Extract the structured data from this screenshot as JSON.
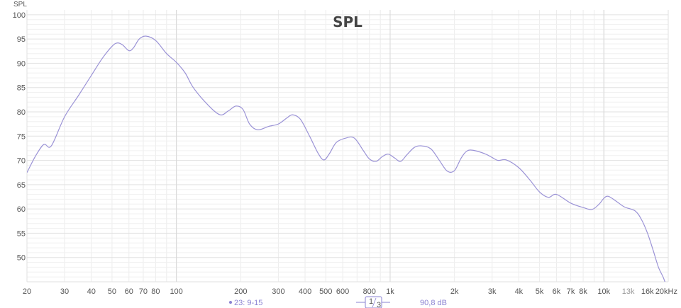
{
  "chart_data": {
    "type": "line",
    "title": "SPL",
    "ylabel": "SPL",
    "xscale": "log",
    "xlim": [
      20,
      20000
    ],
    "ylim": [
      45,
      101
    ],
    "grid": true,
    "ytick_labels": [
      "100",
      "95",
      "90",
      "85",
      "80",
      "75",
      "70",
      "65",
      "60",
      "55",
      "50"
    ],
    "xtick_labels": [
      {
        "x": 20,
        "label": "20"
      },
      {
        "x": 30,
        "label": "30"
      },
      {
        "x": 40,
        "label": "40"
      },
      {
        "x": 50,
        "label": "50"
      },
      {
        "x": 60,
        "label": "60"
      },
      {
        "x": 70,
        "label": "70"
      },
      {
        "x": 80,
        "label": "80"
      },
      {
        "x": 100,
        "label": "100"
      },
      {
        "x": 200,
        "label": "200"
      },
      {
        "x": 300,
        "label": "300"
      },
      {
        "x": 400,
        "label": "400"
      },
      {
        "x": 500,
        "label": "500"
      },
      {
        "x": 600,
        "label": "600"
      },
      {
        "x": 800,
        "label": "800"
      },
      {
        "x": 1000,
        "label": "1k"
      },
      {
        "x": 2000,
        "label": "2k"
      },
      {
        "x": 3000,
        "label": "3k"
      },
      {
        "x": 4000,
        "label": "4k"
      },
      {
        "x": 5000,
        "label": "5k"
      },
      {
        "x": 6000,
        "label": "6k"
      },
      {
        "x": 7000,
        "label": "7k"
      },
      {
        "x": 8000,
        "label": "8k"
      },
      {
        "x": 10000,
        "label": "10k"
      },
      {
        "x": 13000,
        "label": "13k",
        "dim": true
      },
      {
        "x": 16000,
        "label": "16k"
      },
      {
        "x": 20000,
        "label": "20kHz"
      }
    ],
    "series": [
      {
        "color": "#9b93d6",
        "x": [
          20,
          22,
          24,
          26,
          30,
          35,
          40,
          45,
          50,
          53,
          56,
          60,
          63,
          67,
          72,
          80,
          90,
          100,
          110,
          120,
          140,
          160,
          175,
          190,
          205,
          220,
          240,
          270,
          300,
          330,
          350,
          380,
          420,
          460,
          490,
          520,
          560,
          620,
          680,
          750,
          800,
          860,
          920,
          980,
          1050,
          1120,
          1200,
          1300,
          1400,
          1550,
          1700,
          1850,
          2000,
          2150,
          2300,
          2500,
          2800,
          3000,
          3200,
          3500,
          4000,
          4500,
          5000,
          5500,
          6000,
          7000,
          8000,
          8800,
          9500,
          10000,
          10500,
          11500,
          12500,
          14000,
          15000,
          16000,
          17000,
          18000,
          19000,
          20000
        ],
        "y": [
          67.5,
          71.0,
          73.3,
          73.0,
          79.0,
          83.5,
          87.5,
          91.0,
          93.5,
          94.2,
          93.8,
          92.6,
          93.2,
          95.0,
          95.6,
          94.7,
          92.0,
          90.2,
          88.0,
          85.0,
          81.5,
          79.4,
          80.2,
          81.2,
          80.5,
          77.5,
          76.3,
          77.0,
          77.5,
          78.8,
          79.4,
          78.5,
          75.0,
          71.5,
          70.1,
          71.4,
          73.7,
          74.6,
          74.6,
          72.0,
          70.3,
          69.8,
          70.8,
          71.3,
          70.5,
          69.8,
          71.2,
          72.7,
          73.0,
          72.4,
          70.0,
          67.8,
          67.9,
          70.5,
          72.0,
          72.0,
          71.3,
          70.6,
          70.0,
          70.1,
          68.5,
          66.0,
          63.5,
          62.4,
          63.0,
          61.2,
          60.3,
          59.9,
          61.0,
          62.2,
          62.6,
          61.5,
          60.4,
          59.6,
          57.8,
          55.0,
          51.5,
          48.0,
          45.8,
          43.0
        ]
      }
    ]
  },
  "footer": {
    "legend_label": "23: 9-15",
    "smoothing_num": "1",
    "smoothing_den": "3",
    "readout": "90,8 dB",
    "accent_color": "#8a82d2"
  }
}
